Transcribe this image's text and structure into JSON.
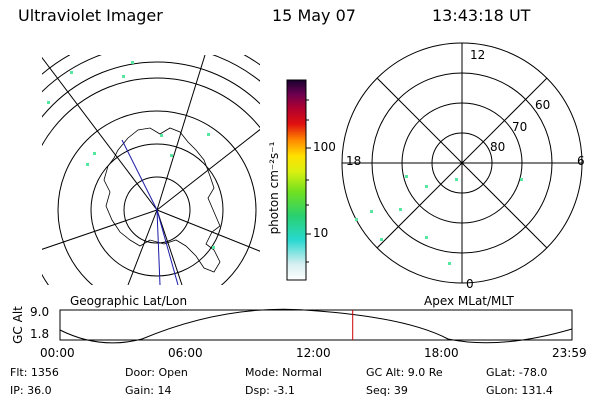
{
  "header": {
    "instrument": "Ultraviolet Imager",
    "date": "15 May 07",
    "time": "13:43:18 UT"
  },
  "geo_map": {
    "label": "Geographic Lat/Lon"
  },
  "polar_map": {
    "label": "Apex MLat/MLT",
    "mlt_labels": {
      "top": "12",
      "bottom": "0",
      "left": "18",
      "right": "6"
    },
    "lat_labels": [
      "60",
      "70",
      "80"
    ]
  },
  "colorbar": {
    "unit": "photon cm⁻²s⁻¹",
    "ticks": [
      "100",
      "10"
    ]
  },
  "timeline": {
    "axis_label": "GC Alt",
    "y_ticks": [
      "9.0",
      "1.8"
    ],
    "x_ticks": [
      "00:00",
      "06:00",
      "12:00",
      "18:00",
      "23:59"
    ],
    "current_time_fraction": 0.5717
  },
  "status": {
    "flt": "Flt: 1356",
    "ip": "IP: 36.0",
    "door": "Door: Open",
    "gain": "Gain: 14",
    "mode": "Mode: Normal",
    "dsp": "Dsp:    -3.1",
    "gc_alt": "GC Alt: 9.0 Re",
    "seq": "Seq: 39",
    "glat": "GLat: -78.0",
    "glon": "GLon: 131.4"
  },
  "colors": {
    "foreground": "#000000",
    "time_marker": "#cc0000",
    "meridian": "#1a1aaa",
    "speck": "#55e6a0"
  }
}
